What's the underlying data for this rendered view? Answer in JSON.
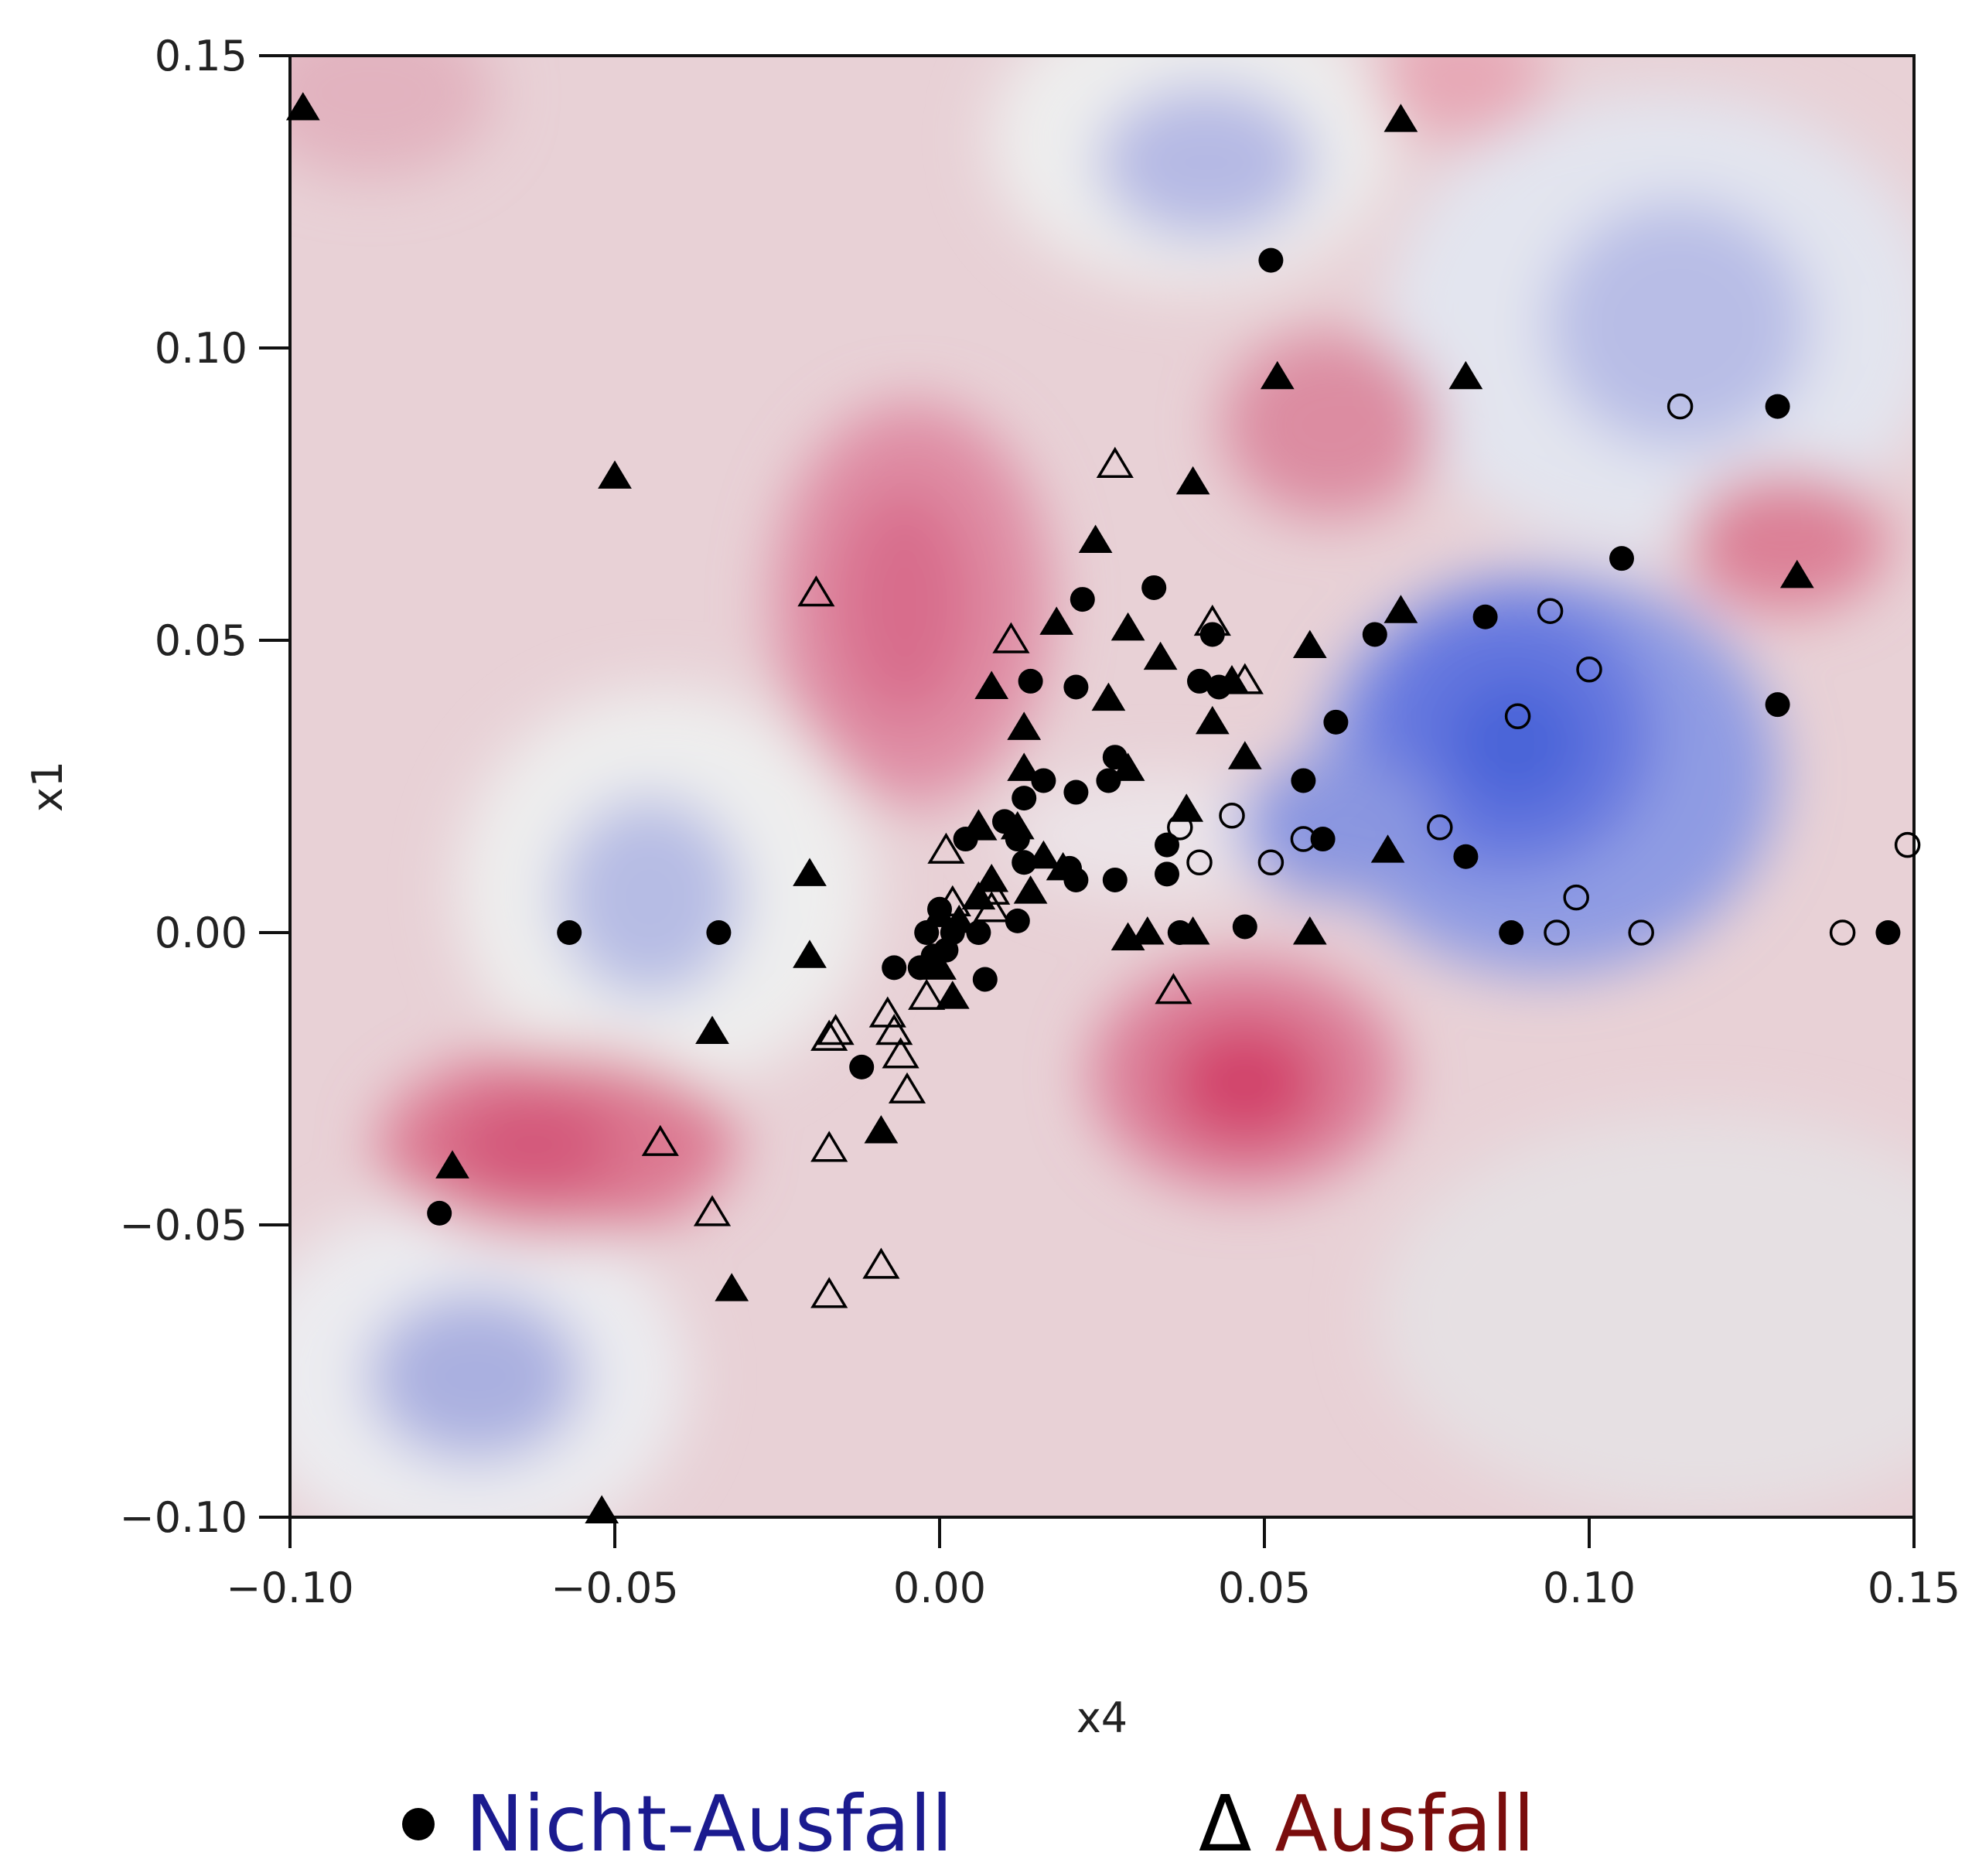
{
  "chart_data": {
    "type": "scatter",
    "xlabel": "x4",
    "ylabel": "x1",
    "xlim": [
      -0.1,
      0.15
    ],
    "ylim": [
      -0.1,
      0.15
    ],
    "xticks": [
      "−0.10",
      "−0.05",
      "0.00",
      "0.05",
      "0.10",
      "0.15"
    ],
    "yticks": [
      "−0.10",
      "−0.05",
      "0.00",
      "0.05",
      "0.10",
      "0.15"
    ],
    "background": "filled contour of class probability: red = Ausfall region, blue = Nicht-Ausfall region",
    "colors": {
      "red_region": "#d2436b",
      "blue_region": "#4a63d8",
      "neutral": "#ececec"
    },
    "series": [
      {
        "name": "Nicht-Ausfall",
        "marker": "filled-circle",
        "points": [
          [
            0.051,
            0.115
          ],
          [
            0.129,
            0.09
          ],
          [
            0.105,
            0.064
          ],
          [
            0.084,
            0.054
          ],
          [
            0.067,
            0.051
          ],
          [
            0.129,
            0.039
          ],
          [
            0.061,
            0.036
          ],
          [
            0.056,
            0.026
          ],
          [
            0.059,
            0.016
          ],
          [
            0.081,
            0.013
          ],
          [
            0.088,
            0.0
          ],
          [
            0.146,
            0.0
          ],
          [
            0.047,
            0.001
          ],
          [
            0.035,
            0.015
          ],
          [
            0.035,
            0.01
          ],
          [
            0.037,
            0.0
          ],
          [
            0.033,
            0.059
          ],
          [
            0.042,
            0.051
          ],
          [
            0.04,
            0.043
          ],
          [
            0.043,
            0.042
          ],
          [
            0.022,
            0.057
          ],
          [
            0.021,
            0.042
          ],
          [
            0.014,
            0.043
          ],
          [
            0.027,
            0.03
          ],
          [
            0.026,
            0.026
          ],
          [
            0.021,
            0.024
          ],
          [
            0.013,
            0.023
          ],
          [
            0.016,
            0.026
          ],
          [
            0.01,
            0.019
          ],
          [
            0.012,
            0.016
          ],
          [
            0.013,
            0.012
          ],
          [
            0.02,
            0.011
          ],
          [
            0.021,
            0.009
          ],
          [
            0.027,
            0.009
          ],
          [
            0.012,
            0.002
          ],
          [
            0.004,
            0.016
          ],
          [
            0.0,
            0.004
          ],
          [
            0.002,
            0.0
          ],
          [
            -0.002,
            0.0
          ],
          [
            0.006,
            0.0
          ],
          [
            0.001,
            -0.003
          ],
          [
            -0.003,
            -0.006
          ],
          [
            -0.001,
            -0.004
          ],
          [
            0.007,
            -0.008
          ],
          [
            -0.007,
            -0.006
          ],
          [
            -0.012,
            -0.023
          ],
          [
            -0.057,
            0.0
          ],
          [
            -0.034,
            0.0
          ],
          [
            -0.077,
            -0.048
          ]
        ]
      },
      {
        "name": "Nicht-Ausfall",
        "marker": "open-circle",
        "points": [
          [
            0.114,
            0.09
          ],
          [
            0.094,
            0.055
          ],
          [
            0.1,
            0.045
          ],
          [
            0.089,
            0.037
          ],
          [
            0.077,
            0.018
          ],
          [
            0.056,
            0.016
          ],
          [
            0.051,
            0.012
          ],
          [
            0.045,
            0.02
          ],
          [
            0.04,
            0.012
          ],
          [
            0.037,
            0.018
          ],
          [
            0.098,
            0.006
          ],
          [
            0.095,
            0.0
          ],
          [
            0.108,
            0.0
          ],
          [
            0.139,
            0.0
          ],
          [
            0.149,
            0.015
          ]
        ]
      },
      {
        "name": "Ausfall",
        "marker": "filled-triangle",
        "points": [
          [
            -0.098,
            0.141
          ],
          [
            -0.05,
            0.078
          ],
          [
            -0.02,
            0.01
          ],
          [
            -0.02,
            -0.004
          ],
          [
            -0.035,
            -0.017
          ],
          [
            -0.075,
            -0.04
          ],
          [
            -0.032,
            -0.061
          ],
          [
            -0.052,
            -0.099
          ],
          [
            -0.009,
            -0.034
          ],
          [
            0.071,
            0.139
          ],
          [
            0.052,
            0.095
          ],
          [
            0.081,
            0.095
          ],
          [
            0.132,
            0.061
          ],
          [
            0.039,
            0.077
          ],
          [
            0.024,
            0.067
          ],
          [
            0.018,
            0.053
          ],
          [
            0.029,
            0.052
          ],
          [
            0.034,
            0.047
          ],
          [
            0.057,
            0.049
          ],
          [
            0.071,
            0.055
          ],
          [
            0.026,
            0.04
          ],
          [
            0.042,
            0.036
          ],
          [
            0.047,
            0.03
          ],
          [
            0.029,
            0.028
          ],
          [
            0.045,
            0.043
          ],
          [
            0.008,
            0.042
          ],
          [
            0.013,
            0.035
          ],
          [
            0.013,
            0.028
          ],
          [
            0.006,
            0.018
          ],
          [
            0.012,
            0.018
          ],
          [
            0.016,
            0.013
          ],
          [
            0.019,
            0.011
          ],
          [
            0.014,
            0.007
          ],
          [
            0.008,
            0.009
          ],
          [
            0.006,
            0.006
          ],
          [
            0.003,
            0.002
          ],
          [
            0.0,
            0.003
          ],
          [
            0.0,
            -0.006
          ],
          [
            0.002,
            -0.011
          ],
          [
            0.029,
            -0.001
          ],
          [
            0.032,
            0.0
          ],
          [
            0.039,
            0.0
          ],
          [
            0.057,
            0.0
          ],
          [
            0.069,
            0.014
          ],
          [
            0.038,
            0.021
          ]
        ]
      },
      {
        "name": "Ausfall",
        "marker": "open-triangle",
        "points": [
          [
            0.027,
            0.08
          ],
          [
            -0.019,
            0.058
          ],
          [
            0.011,
            0.05
          ],
          [
            0.042,
            0.053
          ],
          [
            0.047,
            0.043
          ],
          [
            0.001,
            0.014
          ],
          [
            0.006,
            0.018
          ],
          [
            0.008,
            0.007
          ],
          [
            0.008,
            0.004
          ],
          [
            0.002,
            0.005
          ],
          [
            -0.002,
            -0.011
          ],
          [
            -0.008,
            -0.014
          ],
          [
            -0.007,
            -0.017
          ],
          [
            -0.006,
            -0.021
          ],
          [
            -0.005,
            -0.027
          ],
          [
            -0.016,
            -0.017
          ],
          [
            -0.017,
            -0.018
          ],
          [
            -0.017,
            -0.037
          ],
          [
            -0.043,
            -0.036
          ],
          [
            -0.035,
            -0.048
          ],
          [
            -0.017,
            -0.062
          ],
          [
            -0.009,
            -0.057
          ],
          [
            0.036,
            -0.01
          ]
        ]
      }
    ],
    "legend": [
      {
        "symbol": "",
        "label": "Nicht-Ausfall",
        "color": "#1b1b8f"
      },
      {
        "symbol": "Δ",
        "label": "Ausfall",
        "color": "#7a0d0d"
      }
    ]
  }
}
